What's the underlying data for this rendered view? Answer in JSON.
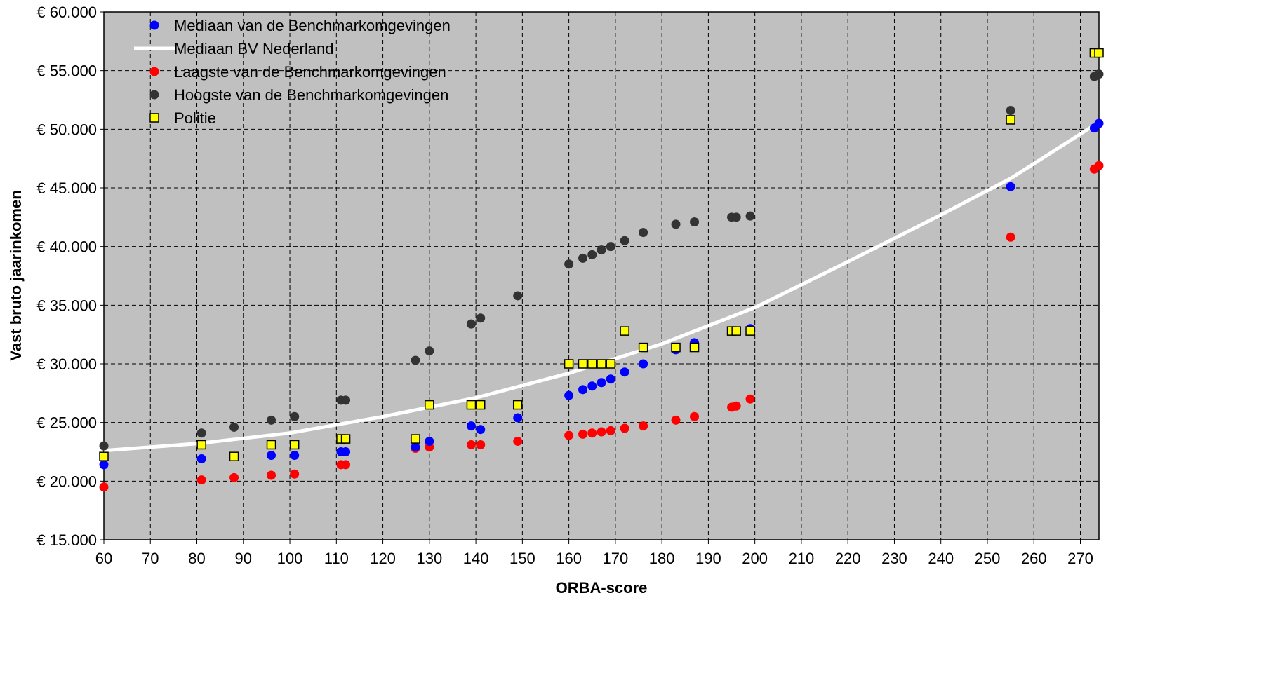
{
  "chart_data": {
    "type": "scatter",
    "xlabel": "ORBA-score",
    "ylabel": "Vast bruto jaarinkomen",
    "xlim": [
      60,
      274
    ],
    "ylim": [
      15000,
      60000
    ],
    "x_ticks": [
      "60",
      "70",
      "80",
      "90",
      "100",
      "110",
      "120",
      "130",
      "140",
      "150",
      "160",
      "170",
      "180",
      "190",
      "200",
      "210",
      "220",
      "230",
      "240",
      "250",
      "260",
      "270"
    ],
    "y_ticks": [
      "€ 15.000",
      "€ 20.000",
      "€ 25.000",
      "€ 30.000",
      "€ 35.000",
      "€ 40.000",
      "€ 45.000",
      "€ 50.000",
      "€ 55.000",
      "€ 60.000"
    ],
    "grid": true,
    "legend_position": "top-left",
    "colors": {
      "plot_background": "#c0c0c0",
      "mediaan_benchmark": "#0000ff",
      "mediaan_bv": "#ffffff",
      "laagste": "#ff0000",
      "hoogste": "#333333",
      "politie_fill": "#ffff00"
    },
    "series": [
      {
        "name": "Mediaan van de Benchmarkomgevingen",
        "marker": "circle",
        "color": "#0000ff",
        "points": [
          [
            60,
            21400
          ],
          [
            81,
            21900
          ],
          [
            96,
            22200
          ],
          [
            101,
            22200
          ],
          [
            111,
            22500
          ],
          [
            112,
            22500
          ],
          [
            127,
            22900
          ],
          [
            130,
            23400
          ],
          [
            139,
            24700
          ],
          [
            141,
            24400
          ],
          [
            149,
            25400
          ],
          [
            160,
            27300
          ],
          [
            163,
            27800
          ],
          [
            165,
            28100
          ],
          [
            167,
            28400
          ],
          [
            169,
            28700
          ],
          [
            172,
            29300
          ],
          [
            176,
            30000
          ],
          [
            183,
            31200
          ],
          [
            187,
            31800
          ],
          [
            199,
            33000
          ],
          [
            255,
            45100
          ],
          [
            273,
            50100
          ],
          [
            274,
            50500
          ]
        ]
      },
      {
        "name": "Mediaan BV Nederland",
        "marker": "line",
        "color": "#ffffff",
        "points": [
          [
            60,
            22600
          ],
          [
            80,
            23200
          ],
          [
            100,
            24100
          ],
          [
            120,
            25500
          ],
          [
            140,
            27100
          ],
          [
            160,
            29200
          ],
          [
            180,
            31700
          ],
          [
            200,
            34800
          ],
          [
            220,
            38700
          ],
          [
            240,
            42700
          ],
          [
            255,
            45800
          ],
          [
            274,
            50600
          ]
        ]
      },
      {
        "name": "Laagste van de Benchmarkomgevingen",
        "marker": "circle",
        "color": "#ff0000",
        "points": [
          [
            60,
            19500
          ],
          [
            81,
            20100
          ],
          [
            88,
            20300
          ],
          [
            96,
            20500
          ],
          [
            101,
            20600
          ],
          [
            111,
            21400
          ],
          [
            112,
            21400
          ],
          [
            127,
            22800
          ],
          [
            130,
            22900
          ],
          [
            139,
            23100
          ],
          [
            141,
            23100
          ],
          [
            149,
            23400
          ],
          [
            160,
            23900
          ],
          [
            163,
            24000
          ],
          [
            165,
            24100
          ],
          [
            167,
            24200
          ],
          [
            169,
            24300
          ],
          [
            172,
            24500
          ],
          [
            176,
            24700
          ],
          [
            183,
            25200
          ],
          [
            187,
            25500
          ],
          [
            195,
            26300
          ],
          [
            196,
            26400
          ],
          [
            199,
            27000
          ],
          [
            255,
            40800
          ],
          [
            273,
            46600
          ],
          [
            274,
            46900
          ]
        ]
      },
      {
        "name": "Hoogste van de Benchmarkomgevingen",
        "marker": "circle",
        "color": "#333333",
        "points": [
          [
            60,
            23000
          ],
          [
            81,
            24100
          ],
          [
            88,
            24600
          ],
          [
            96,
            25200
          ],
          [
            101,
            25500
          ],
          [
            111,
            26900
          ],
          [
            112,
            26900
          ],
          [
            127,
            30300
          ],
          [
            130,
            31100
          ],
          [
            139,
            33400
          ],
          [
            141,
            33900
          ],
          [
            149,
            35800
          ],
          [
            160,
            38500
          ],
          [
            163,
            39000
          ],
          [
            165,
            39300
          ],
          [
            167,
            39700
          ],
          [
            169,
            40000
          ],
          [
            172,
            40500
          ],
          [
            176,
            41200
          ],
          [
            183,
            41900
          ],
          [
            187,
            42100
          ],
          [
            195,
            42500
          ],
          [
            196,
            42500
          ],
          [
            199,
            42600
          ],
          [
            255,
            51600
          ],
          [
            273,
            54500
          ],
          [
            274,
            54700
          ]
        ]
      },
      {
        "name": "Politie",
        "marker": "square",
        "color": "#ffff00",
        "points": [
          [
            60,
            22100
          ],
          [
            81,
            23100
          ],
          [
            88,
            22100
          ],
          [
            96,
            23100
          ],
          [
            101,
            23100
          ],
          [
            111,
            23600
          ],
          [
            112,
            23600
          ],
          [
            127,
            23600
          ],
          [
            130,
            26500
          ],
          [
            139,
            26500
          ],
          [
            141,
            26500
          ],
          [
            149,
            26500
          ],
          [
            160,
            30000
          ],
          [
            163,
            30000
          ],
          [
            165,
            30000
          ],
          [
            167,
            30000
          ],
          [
            169,
            30000
          ],
          [
            172,
            32800
          ],
          [
            176,
            31400
          ],
          [
            183,
            31400
          ],
          [
            187,
            31400
          ],
          [
            195,
            32800
          ],
          [
            196,
            32800
          ],
          [
            199,
            32800
          ],
          [
            255,
            50800
          ],
          [
            273,
            56500
          ],
          [
            274,
            56500
          ]
        ]
      }
    ]
  }
}
